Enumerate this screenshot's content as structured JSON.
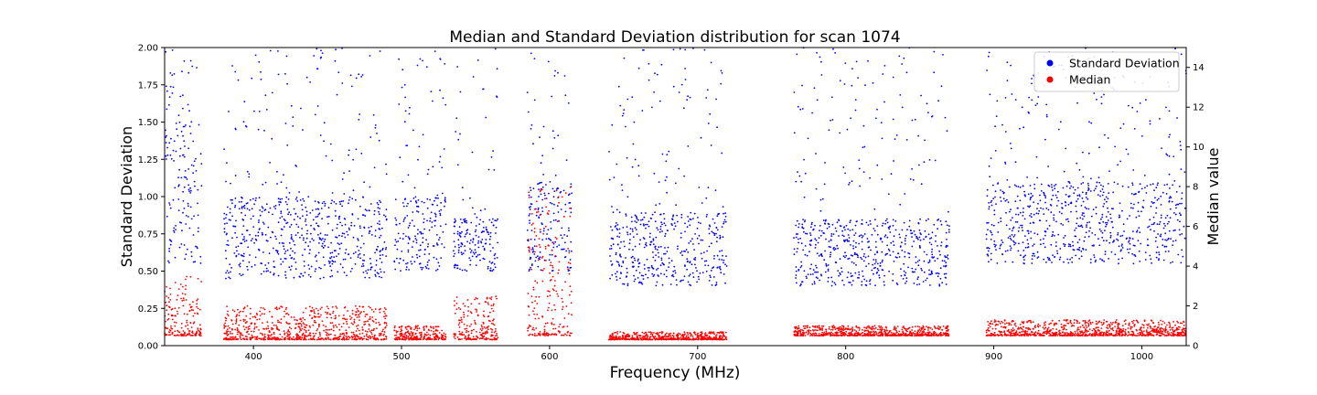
{
  "chart_data": {
    "type": "scatter",
    "title": "Median and Standard Deviation distribution for scan 1074",
    "xlabel": "Frequency (MHz)",
    "ylabel": "Standard Deviation",
    "y2label": "Median value",
    "xlim": [
      340,
      1030
    ],
    "ylim": [
      0,
      2.0
    ],
    "y2lim": [
      0,
      15
    ],
    "xticks": [
      400,
      500,
      600,
      700,
      800,
      900,
      1000
    ],
    "yticks": [
      0.0,
      0.25,
      0.5,
      0.75,
      1.0,
      1.25,
      1.5,
      1.75,
      2.0
    ],
    "ytick_labels": [
      "0.00",
      "0.25",
      "0.50",
      "0.75",
      "1.00",
      "1.25",
      "1.50",
      "1.75",
      "2.00"
    ],
    "y2ticks": [
      0,
      2,
      4,
      6,
      8,
      10,
      12,
      14
    ],
    "y2tick_labels": [
      "0",
      "2",
      "4",
      "6",
      "8",
      "10",
      "12",
      "14"
    ],
    "grid": false,
    "legend_position": "top-right",
    "legend": [
      {
        "label": "Standard Deviation",
        "color": "#0000ff"
      },
      {
        "label": "Median",
        "color": "#ff0000"
      }
    ],
    "series": [
      {
        "name": "Standard Deviation",
        "axis": "left",
        "color": "#0000ff",
        "band_summary": [
          {
            "x_range": [
              340,
              365
            ],
            "typical": [
              0.55,
              1.5
            ]
          },
          {
            "x_range": [
              380,
              490
            ],
            "typical": [
              0.45,
              1.0
            ]
          },
          {
            "x_range": [
              495,
              530
            ],
            "typical": [
              0.5,
              1.0
            ]
          },
          {
            "x_range": [
              535,
              565
            ],
            "typical": [
              0.5,
              0.85
            ]
          },
          {
            "x_range": [
              585,
              615
            ],
            "typical": [
              0.5,
              1.1
            ]
          },
          {
            "x_range": [
              640,
              720
            ],
            "typical": [
              0.4,
              0.9
            ]
          },
          {
            "x_range": [
              765,
              870
            ],
            "typical": [
              0.4,
              0.85
            ]
          },
          {
            "x_range": [
              895,
              1030
            ],
            "typical": [
              0.55,
              1.1
            ]
          }
        ]
      },
      {
        "name": "Median",
        "axis": "right",
        "color": "#ff0000",
        "band_summary": [
          {
            "x_range": [
              340,
              365
            ],
            "typical": [
              0.5,
              3.5
            ]
          },
          {
            "x_range": [
              380,
              490
            ],
            "typical": [
              0.3,
              2.0
            ]
          },
          {
            "x_range": [
              495,
              530
            ],
            "typical": [
              0.3,
              1.0
            ]
          },
          {
            "x_range": [
              535,
              565
            ],
            "typical": [
              0.3,
              2.5
            ]
          },
          {
            "x_range": [
              585,
              615
            ],
            "typical": [
              0.5,
              8.0
            ]
          },
          {
            "x_range": [
              640,
              720
            ],
            "typical": [
              0.3,
              0.7
            ]
          },
          {
            "x_range": [
              765,
              870
            ],
            "typical": [
              0.5,
              1.0
            ]
          },
          {
            "x_range": [
              895,
              1030
            ],
            "typical": [
              0.5,
              1.3
            ]
          }
        ]
      }
    ]
  }
}
